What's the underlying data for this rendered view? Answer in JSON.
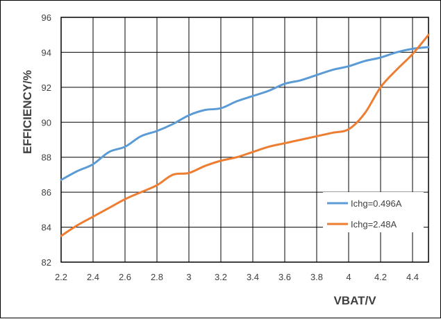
{
  "chart_data": {
    "type": "line",
    "title": "",
    "xlabel": "VBAT/V",
    "ylabel": "EFFICIENCY/%",
    "xlim": [
      2.2,
      4.5
    ],
    "ylim": [
      82,
      96
    ],
    "x_ticks": [
      "2.2",
      "2.4",
      "2.6",
      "2.8",
      "3",
      "3.2",
      "3.4",
      "3.6",
      "3.8",
      "4",
      "4.2",
      "4.4"
    ],
    "y_ticks": [
      "82",
      "84",
      "86",
      "88",
      "90",
      "92",
      "94",
      "96"
    ],
    "grid": true,
    "legend_position": "bottom-right",
    "series": [
      {
        "name": "Ichg=0.496A",
        "color": "#5B9BD5",
        "points": [
          [
            2.2,
            86.7
          ],
          [
            2.3,
            87.2
          ],
          [
            2.4,
            87.6
          ],
          [
            2.5,
            88.3
          ],
          [
            2.6,
            88.6
          ],
          [
            2.7,
            89.2
          ],
          [
            2.8,
            89.5
          ],
          [
            2.9,
            89.9
          ],
          [
            3.0,
            90.4
          ],
          [
            3.1,
            90.7
          ],
          [
            3.2,
            90.8
          ],
          [
            3.3,
            91.2
          ],
          [
            3.4,
            91.5
          ],
          [
            3.5,
            91.8
          ],
          [
            3.6,
            92.2
          ],
          [
            3.7,
            92.4
          ],
          [
            3.8,
            92.7
          ],
          [
            3.9,
            93.0
          ],
          [
            4.0,
            93.2
          ],
          [
            4.1,
            93.5
          ],
          [
            4.2,
            93.7
          ],
          [
            4.3,
            94.0
          ],
          [
            4.4,
            94.2
          ],
          [
            4.5,
            94.3
          ]
        ]
      },
      {
        "name": "Ichg=2.48A",
        "color": "#ED7D31",
        "points": [
          [
            2.2,
            83.5
          ],
          [
            2.3,
            84.1
          ],
          [
            2.4,
            84.6
          ],
          [
            2.5,
            85.1
          ],
          [
            2.6,
            85.6
          ],
          [
            2.7,
            86.0
          ],
          [
            2.8,
            86.4
          ],
          [
            2.9,
            87.0
          ],
          [
            3.0,
            87.1
          ],
          [
            3.1,
            87.5
          ],
          [
            3.2,
            87.8
          ],
          [
            3.3,
            88.0
          ],
          [
            3.4,
            88.3
          ],
          [
            3.5,
            88.6
          ],
          [
            3.6,
            88.8
          ],
          [
            3.7,
            89.0
          ],
          [
            3.8,
            89.2
          ],
          [
            3.9,
            89.4
          ],
          [
            4.0,
            89.6
          ],
          [
            4.1,
            90.5
          ],
          [
            4.2,
            92.0
          ],
          [
            4.3,
            93.0
          ],
          [
            4.4,
            93.9
          ],
          [
            4.5,
            95.0
          ]
        ]
      }
    ]
  }
}
